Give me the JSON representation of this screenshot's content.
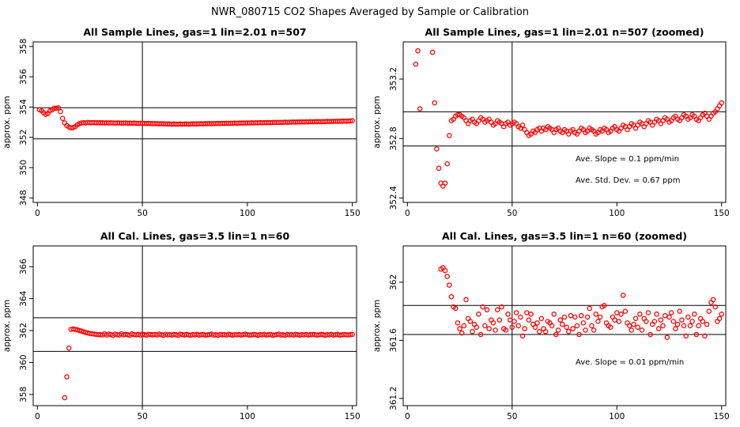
{
  "figure_title": "NWR_080715  CO2 Shapes Averaged by Sample or Calibration",
  "colors": {
    "points": "#ff0000",
    "axes": "#000000",
    "background": "#ffffff"
  },
  "chart_data": [
    {
      "id": "p1",
      "type": "scatter",
      "title": "All Sample Lines, gas=1 lin=2.01 n=507",
      "xlabel": "",
      "ylabel": "approx. ppm",
      "xlim": [
        -2,
        152
      ],
      "ylim": [
        347.7,
        358.3
      ],
      "xticks": [
        0,
        50,
        100,
        150
      ],
      "yticks": [
        348,
        350,
        352,
        354,
        356,
        358
      ],
      "hlines": [
        353.95,
        351.9
      ],
      "vlines": [
        50
      ],
      "annotations": [],
      "segments": [
        {
          "x0": 1,
          "x1": 8,
          "y": [
            353.82,
            353.75,
            353.62,
            353.52,
            353.58,
            353.75,
            353.82,
            353.92
          ]
        },
        {
          "x0": 9,
          "x1": 16,
          "y": [
            353.92,
            353.95,
            353.7,
            353.25,
            352.95,
            352.78,
            352.68,
            352.62
          ]
        },
        {
          "x0": 17,
          "x1": 22,
          "y": [
            352.65,
            352.7,
            352.82,
            352.9,
            352.95,
            352.97
          ]
        },
        {
          "x0": 23,
          "x1": 150,
          "y": [
            352.95,
            352.98,
            352.96,
            352.97,
            352.97,
            352.96,
            352.97,
            352.96,
            352.96,
            352.95,
            352.96,
            352.95,
            352.96,
            352.95,
            352.94,
            352.95,
            352.95,
            352.94,
            352.94,
            352.95,
            352.93,
            352.94,
            352.93,
            352.94,
            352.93,
            352.92,
            352.93,
            352.92,
            352.92,
            352.91,
            352.92,
            352.91,
            352.9,
            352.91,
            352.9,
            352.89,
            352.9,
            352.89,
            352.89,
            352.88,
            352.88,
            352.87,
            352.88,
            352.87,
            352.87,
            352.88,
            352.87,
            352.88,
            352.88,
            352.87,
            352.88,
            352.89,
            352.88,
            352.89,
            352.89,
            352.9,
            352.89,
            352.9,
            352.9,
            352.91,
            352.9,
            352.91,
            352.91,
            352.92,
            352.91,
            352.92,
            352.92,
            352.93,
            352.92,
            352.93,
            352.93,
            352.94,
            352.93,
            352.94,
            352.94,
            352.95,
            352.94,
            352.95,
            352.95,
            352.96,
            352.95,
            352.96,
            352.96,
            352.97,
            352.96,
            352.97,
            352.97,
            352.98,
            352.97,
            352.98,
            352.98,
            352.99,
            352.98,
            352.99,
            352.99,
            353.0,
            352.99,
            353.0,
            353.0,
            353.01,
            353.0,
            353.01,
            353.01,
            353.02,
            353.01,
            353.02,
            353.02,
            353.03,
            353.02,
            353.03,
            353.03,
            353.04,
            353.03,
            353.04,
            353.04,
            353.05,
            353.04,
            353.05,
            353.05,
            353.06,
            353.05,
            353.06,
            353.06,
            353.07,
            353.06,
            353.07,
            353.08,
            353.1
          ]
        }
      ]
    },
    {
      "id": "p2",
      "type": "scatter",
      "title": "All Sample Lines, gas=1 lin=2.01 n=507 (zoomed)",
      "xlabel": "",
      "ylabel": "approx. ppm",
      "xlim": [
        -2,
        152
      ],
      "ylim": [
        352.37,
        353.45
      ],
      "xticks": [
        0,
        50,
        100,
        150
      ],
      "yticks": [
        352.4,
        352.8,
        353.2
      ],
      "hlines": [
        352.98,
        352.75
      ],
      "vlines": [
        50
      ],
      "annotations": [
        "Ave. Slope =  0.1  ppm/min",
        "Ave. Std. Dev. =  0.67  ppm"
      ],
      "segments": [
        {
          "x0": 4,
          "x1": 6,
          "y": [
            353.3,
            353.39,
            353.0
          ]
        },
        {
          "x0": 12,
          "x1": 22,
          "y": [
            353.38,
            353.04,
            352.73,
            352.6,
            352.5,
            352.48,
            352.5,
            352.63,
            352.82,
            352.92,
            352.93
          ]
        },
        {
          "x0": 23,
          "x1": 150,
          "y": [
            352.95,
            352.96,
            352.96,
            352.95,
            352.94,
            352.92,
            352.9,
            352.92,
            352.93,
            352.91,
            352.9,
            352.92,
            352.94,
            352.93,
            352.91,
            352.92,
            352.93,
            352.91,
            352.89,
            352.9,
            352.92,
            352.91,
            352.9,
            352.88,
            352.9,
            352.91,
            352.89,
            352.9,
            352.91,
            352.9,
            352.88,
            352.87,
            352.89,
            352.86,
            352.84,
            352.82,
            352.83,
            352.85,
            352.84,
            352.86,
            352.87,
            352.85,
            352.87,
            352.86,
            352.88,
            352.87,
            352.86,
            352.84,
            352.86,
            352.87,
            352.85,
            352.84,
            352.86,
            352.85,
            352.83,
            352.85,
            352.86,
            352.84,
            352.83,
            352.85,
            352.87,
            352.86,
            352.84,
            352.85,
            352.87,
            352.86,
            352.85,
            352.83,
            352.84,
            352.86,
            352.85,
            352.87,
            352.86,
            352.84,
            352.85,
            352.87,
            352.88,
            352.86,
            352.85,
            352.87,
            352.89,
            352.88,
            352.86,
            352.88,
            352.9,
            352.89,
            352.87,
            352.89,
            352.91,
            352.9,
            352.88,
            352.9,
            352.92,
            352.91,
            352.89,
            352.91,
            352.93,
            352.92,
            352.9,
            352.92,
            352.94,
            352.93,
            352.91,
            352.92,
            352.94,
            352.95,
            352.93,
            352.92,
            352.94,
            352.96,
            352.95,
            352.93,
            352.94,
            352.96,
            352.95,
            352.93,
            352.92,
            352.94,
            352.96,
            352.97,
            352.95,
            352.93,
            352.95,
            352.97,
            352.98,
            353.0,
            353.02,
            353.04
          ]
        }
      ]
    },
    {
      "id": "p3",
      "type": "scatter",
      "title": "All Cal. Lines, gas=3.5 lin=1 n=60",
      "xlabel": "",
      "ylabel": "approx. ppm",
      "xlim": [
        -2,
        152
      ],
      "ylim": [
        357.3,
        367.3
      ],
      "xticks": [
        0,
        50,
        100,
        150
      ],
      "yticks": [
        358,
        360,
        362,
        364,
        366
      ],
      "hlines": [
        362.8,
        360.7
      ],
      "vlines": [
        50
      ],
      "annotations": [],
      "segments": [
        {
          "x0": 13,
          "x1": 15,
          "y": [
            357.8,
            359.1,
            360.9
          ]
        },
        {
          "x0": 16,
          "x1": 150,
          "y": [
            362.08,
            362.1,
            362.08,
            362.05,
            362.0,
            361.97,
            361.92,
            361.88,
            361.85,
            361.82,
            361.8,
            361.78,
            361.76,
            361.75,
            361.74,
            361.73,
            361.8,
            361.72,
            361.78,
            361.75,
            361.7,
            361.78,
            361.74,
            361.72,
            361.8,
            361.73,
            361.76,
            361.74,
            361.7,
            361.79,
            361.75,
            361.73,
            361.76,
            361.72,
            361.78,
            361.74,
            361.71,
            361.77,
            361.75,
            361.73,
            361.76,
            361.72,
            361.78,
            361.74,
            361.7,
            361.77,
            361.73,
            361.75,
            361.72,
            361.76,
            361.74,
            361.7,
            361.78,
            361.75,
            361.72,
            361.76,
            361.73,
            361.71,
            361.75,
            361.73,
            361.77,
            361.72,
            361.74,
            361.76,
            361.71,
            361.73,
            361.75,
            361.78,
            361.72,
            361.74,
            361.7,
            361.76,
            361.73,
            361.75,
            361.72,
            361.77,
            361.74,
            361.71,
            361.75,
            361.73,
            361.76,
            361.72,
            361.74,
            361.78,
            361.75,
            361.72,
            361.73,
            361.76,
            361.74,
            361.7,
            361.75,
            361.73,
            361.77,
            361.72,
            361.74,
            361.76,
            361.71,
            361.73,
            361.75,
            361.78,
            361.72,
            361.74,
            361.7,
            361.76,
            361.73,
            361.75,
            361.72,
            361.77,
            361.74,
            361.71,
            361.75,
            361.73,
            361.76,
            361.72,
            361.74,
            361.77,
            361.75,
            361.72,
            361.73,
            361.76,
            361.74,
            361.71,
            361.75,
            361.73,
            361.77,
            361.72,
            361.74,
            361.76,
            361.71,
            361.73,
            361.75,
            361.74,
            361.73,
            361.75,
            361.76
          ]
        }
      ]
    },
    {
      "id": "p4",
      "type": "scatter",
      "title": "All Cal. Lines, gas=3.5 lin=1 n=60 (zoomed)",
      "xlabel": "",
      "ylabel": "approx. ppm",
      "xlim": [
        -2,
        152
      ],
      "ylim": [
        361.15,
        362.25
      ],
      "xticks": [
        0,
        50,
        100,
        150
      ],
      "yticks": [
        361.2,
        361.6,
        362.0
      ],
      "hlines": [
        361.84,
        361.64
      ],
      "vlines": [
        50
      ],
      "annotations": [
        "Ave. Slope =  0.01  ppm/min"
      ],
      "segments": [
        {
          "x0": 16,
          "x1": 150,
          "y": [
            362.09,
            362.1,
            362.08,
            362.04,
            361.98,
            361.9,
            361.83,
            361.82,
            361.72,
            361.68,
            361.65,
            361.7,
            361.88,
            361.75,
            361.73,
            361.66,
            361.71,
            361.69,
            361.78,
            361.64,
            361.83,
            361.7,
            361.81,
            361.68,
            361.74,
            361.72,
            361.67,
            361.81,
            361.74,
            361.83,
            361.68,
            361.67,
            361.78,
            361.74,
            361.69,
            361.73,
            361.79,
            361.7,
            361.76,
            361.63,
            361.68,
            361.79,
            361.74,
            361.78,
            361.71,
            361.69,
            361.72,
            361.66,
            361.75,
            361.68,
            361.66,
            361.73,
            361.72,
            361.7,
            361.78,
            361.64,
            361.67,
            361.74,
            361.71,
            361.76,
            361.69,
            361.66,
            361.77,
            361.68,
            361.76,
            361.7,
            361.64,
            361.77,
            361.72,
            361.67,
            361.76,
            361.82,
            361.7,
            361.67,
            361.78,
            361.73,
            361.76,
            361.83,
            361.84,
            361.72,
            361.7,
            361.69,
            361.76,
            361.74,
            361.79,
            361.73,
            361.78,
            361.91,
            361.8,
            361.72,
            361.7,
            361.67,
            361.71,
            361.75,
            361.69,
            361.78,
            361.67,
            361.75,
            361.73,
            361.79,
            361.64,
            361.71,
            361.73,
            361.78,
            361.68,
            361.74,
            361.7,
            361.77,
            361.62,
            361.76,
            361.79,
            361.73,
            361.68,
            361.71,
            361.8,
            361.74,
            361.7,
            361.63,
            361.76,
            361.7,
            361.73,
            361.78,
            361.64,
            361.7,
            361.75,
            361.73,
            361.63,
            361.71,
            361.8,
            361.86,
            361.88,
            361.83,
            361.73,
            361.75,
            361.78
          ]
        }
      ]
    }
  ]
}
